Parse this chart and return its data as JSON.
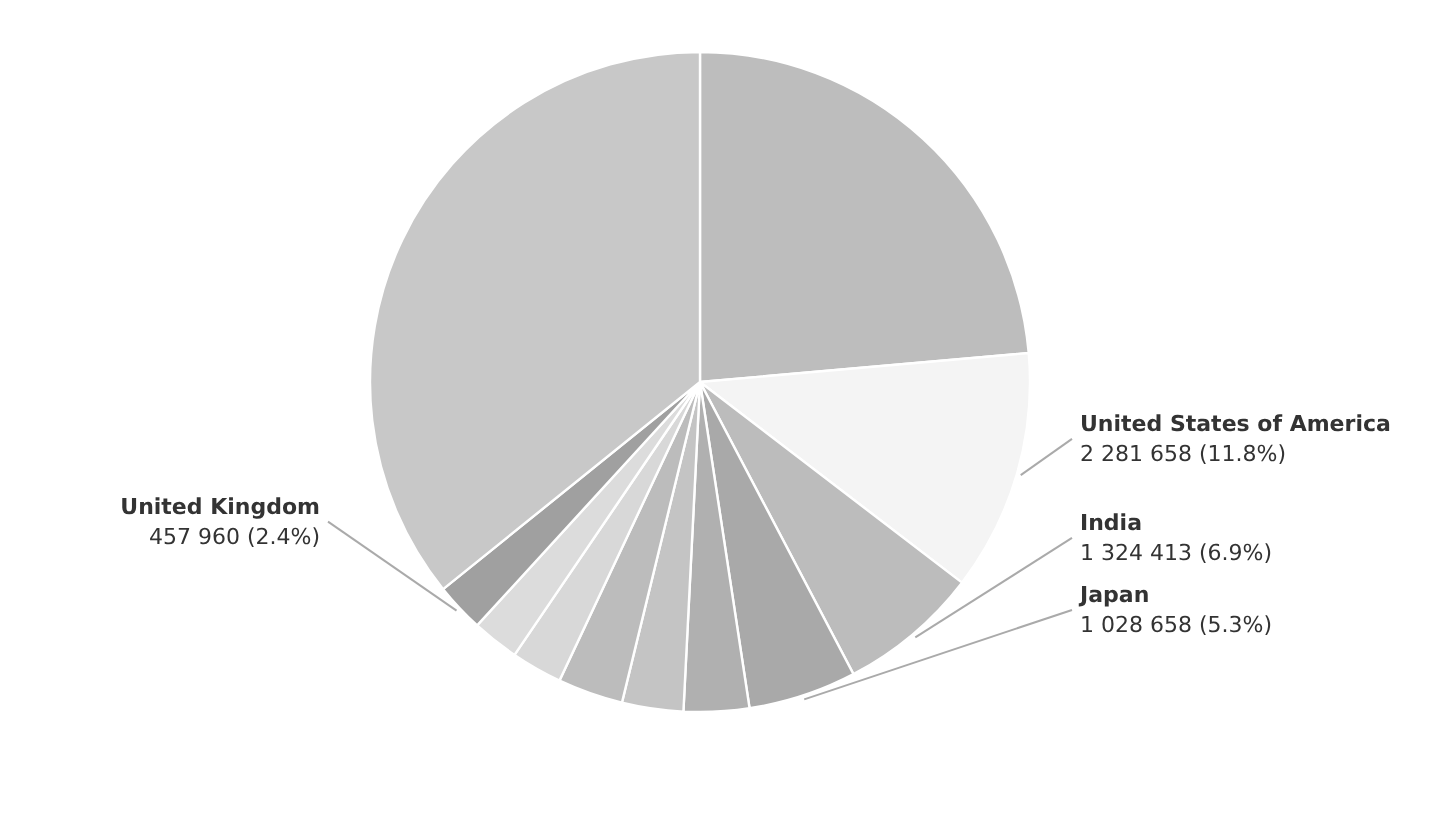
{
  "chart_data": {
    "type": "pie",
    "categories": [
      null,
      "United States of America",
      "India",
      "Japan",
      null,
      null,
      null,
      null,
      null,
      "United Kingdom",
      null
    ],
    "values": [
      23.6,
      11.8,
      6.9,
      5.3,
      3.2,
      3.0,
      3.2,
      2.5,
      2.3,
      2.4,
      35.8
    ],
    "colors": [
      "#bdbdbd",
      "#f4f4f4",
      "#bcbcbc",
      "#a9a9a9",
      "#b0b0b0",
      "#c4c4c4",
      "#bcbcbc",
      "#d8d8d8",
      "#dcdcdc",
      "#a0a0a0",
      "#c8c8c8"
    ],
    "value_labels": [
      null,
      "2 281 658 (11.8%)",
      "1 324 413 (6.9%)",
      "1 028 658 (5.3%)",
      null,
      null,
      null,
      null,
      null,
      "457 960 (2.4%)",
      null
    ]
  }
}
